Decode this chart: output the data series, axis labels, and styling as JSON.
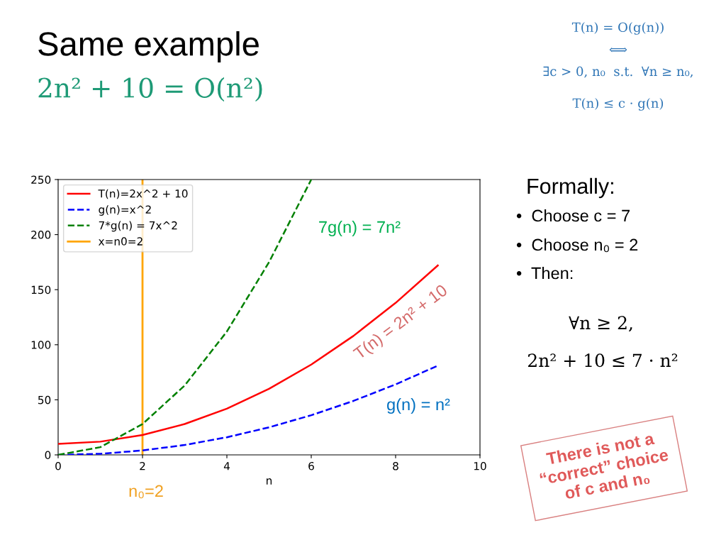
{
  "chart_data": {
    "type": "line",
    "title": "Same example",
    "subtitle": "2n² + 10 = O(n²)",
    "xlabel": "n",
    "x": [
      0,
      1,
      2,
      3,
      4,
      5,
      6,
      7,
      8,
      9
    ],
    "series": [
      {
        "name": "T(n)=2x^2 + 10",
        "color": "#ff0000",
        "line_style": "solid",
        "values": [
          10,
          12,
          18,
          28,
          42,
          60,
          82,
          108,
          138,
          172
        ]
      },
      {
        "name": "g(n)=x^2",
        "color": "#0000ff",
        "line_style": "dashed",
        "values": [
          0,
          1,
          4,
          9,
          16,
          25,
          36,
          49,
          64,
          81
        ]
      },
      {
        "name": "7*g(n) = 7x^2",
        "color": "#008000",
        "line_style": "dashed",
        "x": [
          0,
          1,
          2,
          3,
          4,
          5,
          6
        ],
        "values": [
          0,
          7,
          28,
          63,
          112,
          175,
          250
        ]
      }
    ],
    "ref_lines": [
      {
        "axis": "x",
        "value": 2,
        "label": "x=n0=2",
        "color": "#ffa500",
        "line_style": "solid"
      }
    ],
    "xlim": [
      0,
      10
    ],
    "ylim": [
      0,
      250
    ],
    "xticks": [
      0,
      2,
      4,
      6,
      8,
      10
    ],
    "yticks": [
      0,
      50,
      100,
      150,
      200,
      250
    ],
    "legend": "top left",
    "annotations": [
      "7g(n) = 7n²",
      "T(n) = 2n² + 10",
      "g(n) = n²",
      "n₀=2",
      "T(n) = O(g(n))",
      "⟺",
      "∃c > 0, n₀  s.t.  ∀n ≥ n₀,",
      "T(n) ≤ c · g(n)",
      "Formally:",
      "•  Choose c = 7",
      "•  Choose n₀ = 2",
      "•  Then:",
      "∀n ≥ 2,",
      "2n² + 10 ≤ 7 · n²",
      "There is not a\n“correct” choice\nof c and n₀"
    ]
  }
}
